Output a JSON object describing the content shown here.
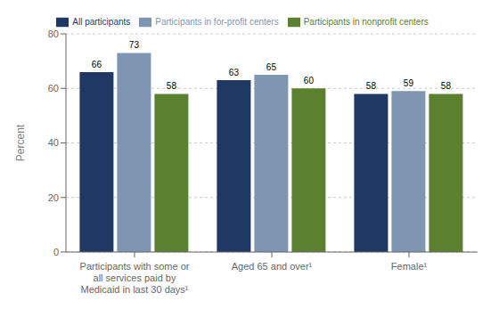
{
  "chart_data": {
    "type": "bar",
    "categories": [
      "Participants with some or\nall services paid by\nMedicaid in last 30 days¹",
      "Aged 65 and over¹",
      "Female¹"
    ],
    "series": [
      {
        "name": "All participants",
        "color": "#1f3864",
        "values": [
          66,
          63,
          58
        ]
      },
      {
        "name": "Participants in for-profit centers",
        "color": "#7f96b2",
        "values": [
          73,
          65,
          59
        ]
      },
      {
        "name": "Participants in nonprofit centers",
        "color": "#5a8030",
        "values": [
          58,
          60,
          58
        ]
      }
    ],
    "ylabel": "Percent",
    "ylim": [
      0,
      80
    ],
    "yticks": [
      0,
      20,
      40,
      60,
      80
    ],
    "grid": true,
    "legend": "top",
    "data_labels": true
  }
}
